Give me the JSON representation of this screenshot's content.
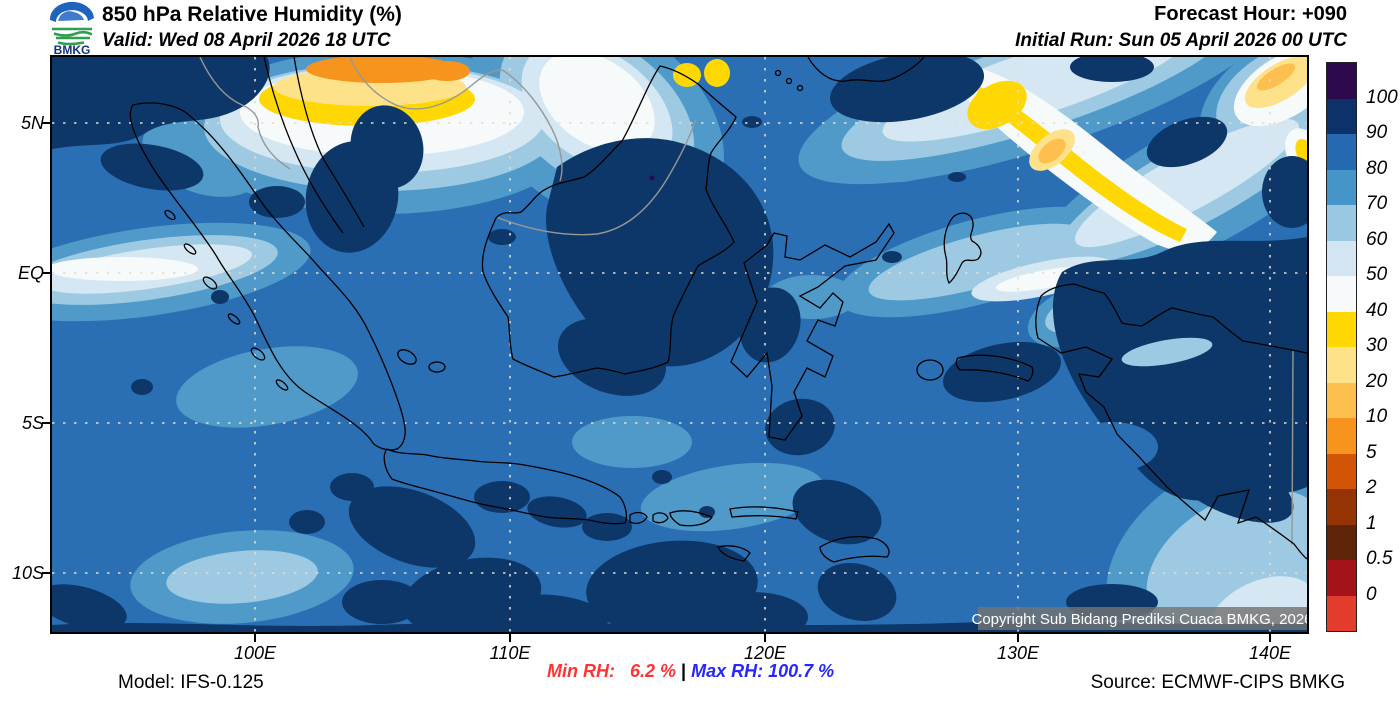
{
  "header": {
    "logo_text": "BMKG",
    "title": "850 hPa Relative Humidity (%)",
    "valid": "Valid: Wed 08 April 2026 18 UTC",
    "forecast_hour": "Forecast Hour: +090",
    "initial_run": "Initial Run: Sun 05 April 2026 00 UTC"
  },
  "map": {
    "lat_ticks": [
      "5N",
      "EQ",
      "5S",
      "10S"
    ],
    "lon_ticks": [
      "100E",
      "110E",
      "120E",
      "130E",
      "140E"
    ],
    "copyright": "Copyright Sub Bidang Prediksi Cuaca BMKG, 2026"
  },
  "colorbar": {
    "tick_labels": [
      "100",
      "90",
      "80",
      "70",
      "60",
      "50",
      "40",
      "30",
      "20",
      "10",
      "5",
      "2",
      "1",
      "0.5",
      "0"
    ],
    "segment_colors_top_to_bottom": [
      "#2e0a4d",
      "#0d3269",
      "#2569b0",
      "#4695c8",
      "#9ac8e1",
      "#d3e5f0",
      "#f7f9fa",
      "#ffd703",
      "#fde289",
      "#fdbf4d",
      "#f7941e",
      "#d25406",
      "#943405",
      "#5f2407",
      "#a41319",
      "#e23c2d"
    ]
  },
  "footer": {
    "model": "Model: IFS-0.125",
    "min_rh_label": "Min RH:",
    "min_rh_value": "6.2 %",
    "separator": "|",
    "max_rh_label": "Max RH:",
    "max_rh_value": "100.7 %",
    "source": "Source: ECMWF-CIPS BMKG",
    "min_color": "#ff3333",
    "max_color": "#2626ff"
  },
  "chart_data": {
    "type": "heatmap",
    "title": "850 hPa Relative Humidity (%)",
    "units": "%",
    "legend_levels": [
      100,
      90,
      80,
      70,
      60,
      50,
      40,
      30,
      20,
      10,
      5,
      2,
      1,
      0.5,
      0
    ],
    "legend_position": "right",
    "lat_tick_labels": [
      "5N",
      "EQ",
      "5S",
      "10S"
    ],
    "lon_tick_labels": [
      "100E",
      "110E",
      "120E",
      "130E",
      "140E"
    ],
    "grid": "dotted",
    "min_rh_percent": 6.2,
    "max_rh_percent": 100.7,
    "forecast_hour": 90,
    "region": "Indonesia / Maritime Continent"
  }
}
